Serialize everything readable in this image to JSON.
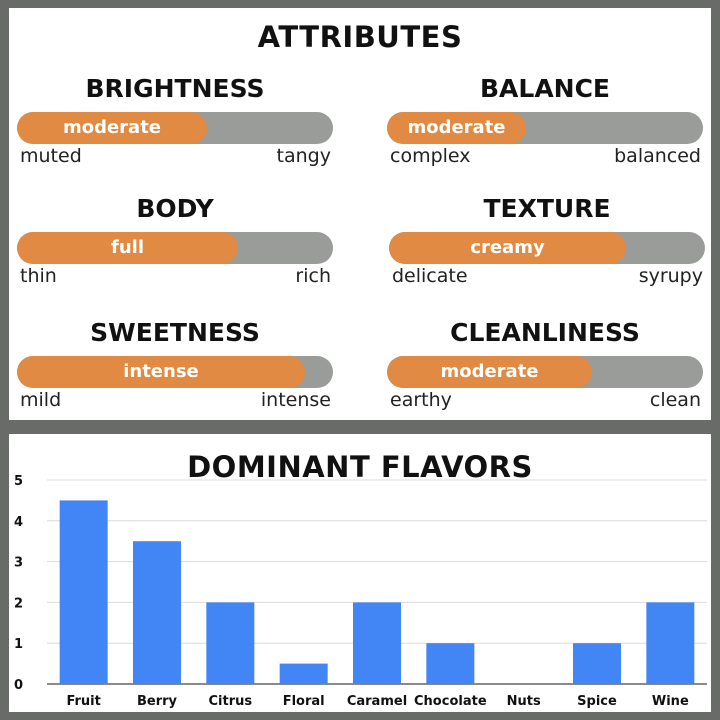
{
  "attributes": {
    "title": "ATTRIBUTES",
    "items": [
      {
        "name": "BRIGHTNESS",
        "level": "moderate",
        "low": "muted",
        "high": "tangy",
        "fill_fraction": 0.6
      },
      {
        "name": "BALANCE",
        "level": "moderate",
        "low": "complex",
        "high": "balanced",
        "fill_fraction": 0.44
      },
      {
        "name": "BODY",
        "level": "full",
        "low": "thin",
        "high": "rich",
        "fill_fraction": 0.7
      },
      {
        "name": "TEXTURE",
        "level": "creamy",
        "low": "delicate",
        "high": "syrupy",
        "fill_fraction": 0.75
      },
      {
        "name": "SWEETNESS",
        "level": "intense",
        "low": "mild",
        "high": "intense",
        "fill_fraction": 0.91
      },
      {
        "name": "CLEANLINESS",
        "level": "moderate",
        "low": "earthy",
        "high": "clean",
        "fill_fraction": 0.65
      }
    ],
    "colors": {
      "fill": "#e08a44",
      "track": "#999c98"
    }
  },
  "chart_data": {
    "type": "bar",
    "title": "DOMINANT FLAVORS",
    "categories": [
      "Fruit",
      "Berry",
      "Citrus",
      "Floral",
      "Caramel",
      "Chocolate",
      "Nuts",
      "Spice",
      "Wine"
    ],
    "values": [
      4.5,
      3.5,
      2,
      0.5,
      2,
      1,
      0,
      1,
      2
    ],
    "ylim": [
      0,
      5
    ],
    "yticks": [
      0,
      1,
      2,
      3,
      4,
      5
    ],
    "grid": true,
    "xlabel": "",
    "ylabel": "",
    "bar_color": "#4285f4"
  }
}
